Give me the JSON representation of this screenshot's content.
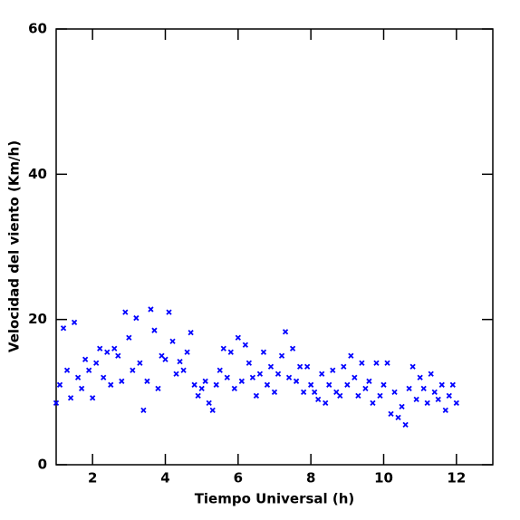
{
  "chart_data": {
    "type": "scatter",
    "xlabel": "Tiempo Universal (h)",
    "ylabel": "Velocidad del viento (Km/h)",
    "xlim": [
      1,
      13
    ],
    "xticks": [
      2,
      4,
      6,
      8,
      10,
      12
    ],
    "ylim": [
      0,
      60
    ],
    "yticks": [
      0,
      20,
      40,
      60
    ],
    "color": "#0000ff",
    "marker": "x",
    "x": [
      1.0,
      1.1,
      1.2,
      1.3,
      1.4,
      1.5,
      1.6,
      1.7,
      1.8,
      1.9,
      2.0,
      2.1,
      2.2,
      2.3,
      2.4,
      2.5,
      2.6,
      2.7,
      2.8,
      2.9,
      3.0,
      3.1,
      3.2,
      3.3,
      3.4,
      3.5,
      3.6,
      3.7,
      3.8,
      3.9,
      4.0,
      4.1,
      4.2,
      4.3,
      4.4,
      4.5,
      4.6,
      4.7,
      4.8,
      4.9,
      5.0,
      5.1,
      5.2,
      5.3,
      5.4,
      5.5,
      5.6,
      5.7,
      5.8,
      5.9,
      6.0,
      6.1,
      6.2,
      6.3,
      6.4,
      6.5,
      6.6,
      6.7,
      6.8,
      6.9,
      7.0,
      7.1,
      7.2,
      7.3,
      7.4,
      7.5,
      7.6,
      7.7,
      7.8,
      7.9,
      8.0,
      8.1,
      8.2,
      8.3,
      8.4,
      8.5,
      8.6,
      8.7,
      8.8,
      8.9,
      9.0,
      9.1,
      9.2,
      9.3,
      9.4,
      9.5,
      9.6,
      9.7,
      9.8,
      9.9,
      10.0,
      10.1,
      10.2,
      10.3,
      10.4,
      10.5,
      10.6,
      10.7,
      10.8,
      10.9,
      11.0,
      11.1,
      11.2,
      11.3,
      11.4,
      11.5,
      11.6,
      11.7,
      11.8,
      11.9,
      12.0
    ],
    "values": [
      8.5,
      11,
      18.8,
      13,
      9.2,
      19.6,
      12,
      10.5,
      14.5,
      13,
      9.2,
      14,
      16,
      12,
      15.5,
      11,
      16,
      15,
      11.5,
      21,
      17.5,
      13,
      20.2,
      14,
      7.5,
      11.5,
      21.4,
      18.5,
      10.5,
      15,
      14.5,
      21,
      17,
      12.5,
      14.2,
      13,
      15.5,
      18.2,
      11,
      9.5,
      10.5,
      11.5,
      8.5,
      7.5,
      11,
      13,
      16,
      12,
      15.5,
      10.5,
      17.5,
      11.5,
      16.5,
      14,
      12,
      9.5,
      12.5,
      15.5,
      11,
      13.5,
      10,
      12.5,
      15,
      18.3,
      12,
      16,
      11.5,
      13.5,
      10,
      13.5,
      11,
      10,
      9,
      12.5,
      8.5,
      11,
      13,
      10,
      9.5,
      13.5,
      11,
      15,
      12,
      9.5,
      14,
      10.5,
      11.5,
      8.5,
      14,
      9.5,
      11,
      14,
      7,
      10,
      6.5,
      8,
      5.5,
      10.5,
      13.5,
      9,
      12,
      10.5,
      8.5,
      12.5,
      10,
      9,
      11,
      7.5,
      9.5,
      11,
      8.5
    ]
  }
}
